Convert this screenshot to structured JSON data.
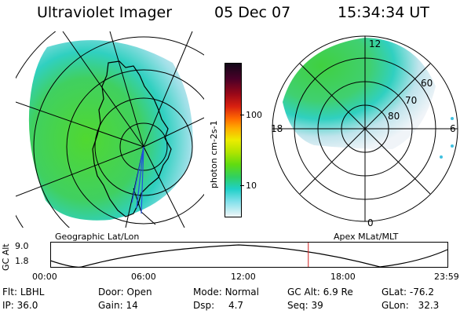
{
  "header": {
    "title": "Ultraviolet Imager",
    "date": "05 Dec 07",
    "time": "15:34:34 UT"
  },
  "colorbar": {
    "unit_label": "photon cm-2s-1",
    "ticks": [
      "100",
      "10"
    ],
    "colors": [
      "#1a0a20",
      "#5a0030",
      "#a00010",
      "#d02010",
      "#ff6000",
      "#ffa000",
      "#e0e000",
      "#a8e000",
      "#60e000",
      "#30d840",
      "#20d0c0",
      "#80e0e8",
      "#d0e8f0",
      "#f0f4f8"
    ]
  },
  "left_map": {
    "caption": "Geographic Lat/Lon"
  },
  "right_polar": {
    "caption": "Apex MLat/MLT",
    "mlt_labels": {
      "top": "12",
      "left": "18",
      "right": "6",
      "bottom": "0"
    },
    "lat_labels": [
      "60",
      "70",
      "80"
    ]
  },
  "altitude_plot": {
    "ylabel": "GC Alt",
    "ytick_top": "9.0",
    "ytick_bottom": "1.8",
    "xticks": [
      "00:00",
      "06:00",
      "12:00",
      "18:00",
      "23:59"
    ],
    "marker_color": "#d02020",
    "marker_fraction": 0.649
  },
  "status": {
    "filter": {
      "label": "Flt:",
      "value": "LBHL"
    },
    "ip": {
      "label": "IP:",
      "value": "36.0"
    },
    "door": {
      "label": "Door:",
      "value": "Open"
    },
    "gain": {
      "label": "Gain:",
      "value": "14"
    },
    "mode": {
      "label": "Mode:",
      "value": "Normal"
    },
    "dsp": {
      "label": "Dsp:",
      "value": "4.7"
    },
    "gc_alt": {
      "label": "GC Alt:",
      "value": "6.9 Re"
    },
    "seq": {
      "label": "Seq:",
      "value": "39"
    },
    "glat": {
      "label": "GLat:",
      "value": "-76.2"
    },
    "glon": {
      "label": "GLon:",
      "value": "32.3"
    }
  }
}
